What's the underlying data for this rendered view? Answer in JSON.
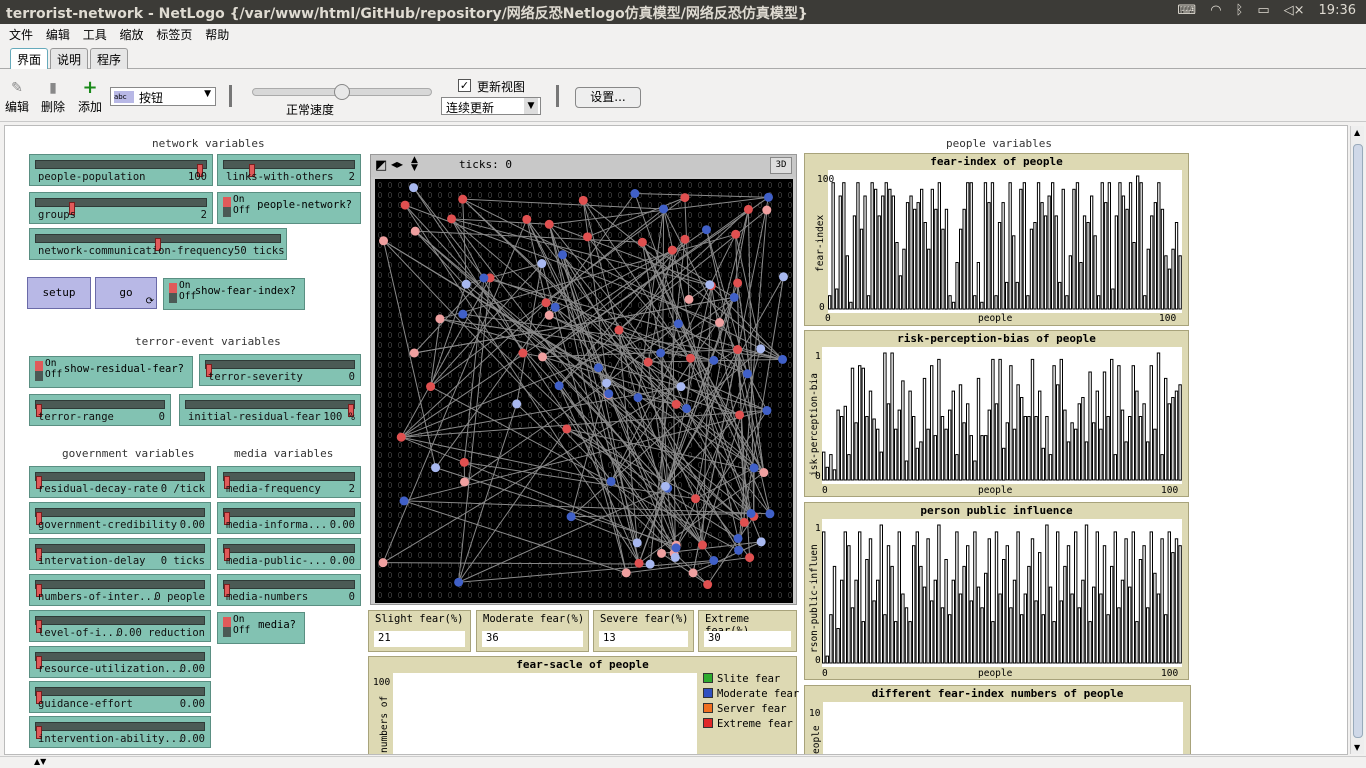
{
  "window": {
    "title": "terrorist-network - NetLogo {/var/www/html/GitHub/repository/网络反恐Netlogo仿真模型/网络反恐仿真模型}",
    "clock": "19:36",
    "tray_icons": [
      "keyboard-icon",
      "wifi-icon",
      "bluetooth-icon",
      "battery-icon",
      "volume-mute-icon"
    ]
  },
  "menu": [
    "文件",
    "编辑",
    "工具",
    "缩放",
    "标签页",
    "帮助"
  ],
  "tabs": [
    "界面",
    "说明",
    "程序"
  ],
  "toolbar": {
    "edit": "编辑",
    "delete": "删除",
    "add": "添加",
    "widget_select": "按钮",
    "speed_label": "正常速度",
    "speed": 0.5,
    "update_view": "更新视图",
    "update_view_checked": true,
    "update_mode": "连续更新",
    "settings": "设置..."
  },
  "sections": {
    "network": "network variables",
    "terror": "terror-event variables",
    "government": "government variables",
    "media": "media variables",
    "people": "people variables"
  },
  "sliders": [
    {
      "name": "people-population",
      "value": "100",
      "pos": 0.98
    },
    {
      "name": "links-with-others",
      "value": "2",
      "pos": 0.2
    },
    {
      "name": "groups",
      "value": "2",
      "pos": 0.2
    },
    {
      "name": "network-communication-frequency",
      "value": "50 ticks",
      "pos": 0.5
    },
    {
      "name": "terror-severity",
      "value": "0",
      "pos": 0
    },
    {
      "name": "terror-range",
      "value": "0",
      "pos": 0
    },
    {
      "name": "initial-residual-fear",
      "value": "100 %",
      "pos": 1
    },
    {
      "name": "residual-decay-rate",
      "value": "0 /tick",
      "pos": 0
    },
    {
      "name": "media-frequency",
      "value": "2",
      "pos": 0
    },
    {
      "name": "government-credibility",
      "value": "0.00",
      "pos": 0
    },
    {
      "name": "media-informa...",
      "value": "0.00",
      "pos": 0
    },
    {
      "name": "intervation-delay",
      "value": "0 ticks",
      "pos": 0
    },
    {
      "name": "media-public-...",
      "value": "0.00",
      "pos": 0
    },
    {
      "name": "numbers-of-inter...",
      "value": "0 people",
      "pos": 0
    },
    {
      "name": "media-numbers",
      "value": "0",
      "pos": 0
    },
    {
      "name": "level-of-i...",
      "value": "0.00 reduction",
      "pos": 0
    },
    {
      "name": "resource-utilization...",
      "value": "0.00",
      "pos": 0
    },
    {
      "name": "guidance-effort",
      "value": "0.00",
      "pos": 0
    },
    {
      "name": "intervention-ability...",
      "value": "0.00",
      "pos": 0
    }
  ],
  "switches": [
    {
      "name": "people-network?",
      "on": "On",
      "off": "Off"
    },
    {
      "name": "show-fear-index?",
      "on": "On",
      "off": "Off"
    },
    {
      "name": "show-residual-fear?",
      "on": "On",
      "off": "Off"
    },
    {
      "name": "media?",
      "on": "On",
      "off": "Off"
    }
  ],
  "buttons": {
    "setup": "setup",
    "go": "go"
  },
  "view": {
    "ticks_label": "ticks: 0",
    "three_d": "3D"
  },
  "monitors": [
    {
      "name": "Slight fear(%)",
      "value": "21"
    },
    {
      "name": "Moderate fear(%)",
      "value": "36"
    },
    {
      "name": "Severe fear(%)",
      "value": "13"
    },
    {
      "name": "Extreme fear(%)",
      "value": "30"
    }
  ],
  "plots": {
    "fear_index": {
      "title": "fear-index of people",
      "ylabel": "fear-index",
      "xlabel": "people",
      "xmin": "0",
      "xmax": "100",
      "ymin": "0",
      "ymax": "100"
    },
    "risk": {
      "title": "risk-perception-bias of people",
      "ylabel": "isk-perception-bia",
      "xlabel": "people",
      "xmin": "0",
      "xmax": "100",
      "ymin": "0",
      "ymax": "1"
    },
    "influence": {
      "title": "person public influence",
      "ylabel": "rson-public-influen",
      "xlabel": "people",
      "xmin": "0",
      "xmax": "100",
      "ymin": "0",
      "ymax": "1"
    },
    "fear_scale": {
      "title": "fear-sacle of people",
      "ylabel": "numbers of",
      "ymax": "100",
      "legend": [
        {
          "label": "Slite fear",
          "color": "#2eab2e"
        },
        {
          "label": "Moderate fear",
          "color": "#3050c0"
        },
        {
          "label": "Server fear",
          "color": "#f07020"
        },
        {
          "label": "Extreme fear",
          "color": "#e02828"
        }
      ]
    },
    "fear_numbers": {
      "title": "different fear-index numbers of people",
      "ylabel": "eople",
      "ymax": "10"
    }
  },
  "chart_data": [
    {
      "type": "bar",
      "title": "fear-index of people",
      "xlabel": "people",
      "ylabel": "fear-index",
      "ylim": [
        0,
        100
      ],
      "values": [
        10,
        95,
        15,
        85,
        95,
        40,
        5,
        70,
        95,
        60,
        85,
        10,
        95,
        90,
        70,
        85,
        95,
        90,
        85,
        50,
        25,
        45,
        80,
        85,
        75,
        80,
        90,
        65,
        45,
        90,
        75,
        95,
        60,
        75,
        10,
        5,
        35,
        60,
        75,
        95,
        95,
        10,
        35,
        5,
        95,
        80,
        95,
        10,
        65,
        80,
        20,
        95,
        55,
        20,
        90,
        95,
        10,
        60,
        65,
        95,
        80,
        70,
        85,
        95,
        70,
        20,
        90,
        10,
        40,
        90,
        95,
        35,
        70,
        65,
        85,
        55,
        10,
        95,
        80,
        95,
        15,
        70,
        95,
        85,
        75,
        95,
        50,
        100,
        95,
        10,
        45,
        70,
        80,
        95,
        75,
        40,
        30,
        45,
        65,
        40
      ]
    },
    {
      "type": "bar",
      "title": "risk-perception-bias of people",
      "xlabel": "people",
      "ylabel": "risk-perception-bias",
      "ylim": [
        0,
        1
      ],
      "values": [
        0.22,
        0.1,
        0.2,
        0.08,
        0.55,
        0.5,
        0.58,
        0.2,
        0.88,
        0.45,
        0.9,
        0.88,
        0.5,
        0.7,
        0.48,
        0.4,
        0.22,
        1.0,
        0.6,
        1.0,
        0.4,
        0.55,
        0.78,
        0.15,
        0.7,
        0.5,
        0.25,
        0.3,
        0.8,
        0.4,
        0.9,
        0.35,
        0.95,
        0.5,
        0.4,
        0.55,
        0.7,
        0.2,
        0.75,
        0.45,
        0.6,
        0.35,
        0.15,
        0.8,
        0.35,
        0.35,
        0.55,
        0.95,
        0.6,
        0.95,
        0.25,
        0.45,
        0.9,
        0.4,
        0.75,
        0.65,
        0.5,
        0.5,
        0.95,
        0.5,
        0.7,
        0.25,
        0.5,
        0.2,
        0.9,
        0.75,
        0.95,
        0.55,
        0.3,
        0.45,
        0.4,
        0.6,
        0.65,
        0.3,
        0.85,
        0.45,
        0.7,
        0.4,
        0.85,
        0.5,
        0.95,
        0.2,
        0.9,
        0.55,
        0.3,
        0.5,
        0.9,
        0.7,
        0.5,
        0.6,
        0.3,
        0.9,
        0.4,
        1.0,
        0.2,
        0.8,
        0.6,
        0.65,
        0.7,
        0.75
      ]
    },
    {
      "type": "bar",
      "title": "person public influence",
      "xlabel": "people",
      "ylabel": "person-public-influence",
      "ylim": [
        0,
        1
      ],
      "values": [
        0.95,
        0.05,
        0.35,
        0.7,
        0.25,
        0.6,
        0.95,
        0.85,
        0.4,
        0.6,
        0.95,
        0.3,
        0.75,
        0.9,
        0.45,
        0.6,
        1.0,
        0.35,
        0.85,
        0.7,
        0.3,
        0.95,
        0.5,
        0.4,
        0.3,
        0.85,
        0.95,
        0.7,
        0.55,
        0.9,
        0.45,
        0.6,
        1.0,
        0.4,
        0.75,
        0.35,
        0.6,
        0.95,
        0.5,
        0.7,
        0.85,
        0.45,
        0.95,
        0.55,
        0.4,
        0.65,
        0.9,
        0.3,
        0.95,
        0.5,
        0.75,
        0.85,
        0.4,
        0.6,
        0.95,
        0.35,
        0.5,
        0.7,
        0.9,
        0.45,
        0.8,
        0.35,
        1.0,
        0.55,
        0.3,
        0.95,
        0.45,
        0.7,
        0.85,
        0.5,
        0.95,
        0.4,
        0.6,
        1.0,
        0.3,
        0.55,
        0.95,
        0.5,
        0.85,
        0.35,
        0.7,
        0.95,
        0.4,
        0.6,
        0.9,
        0.55,
        0.95,
        0.3,
        0.75,
        0.85,
        0.4,
        0.95,
        0.65,
        0.5,
        0.9,
        0.35,
        0.95,
        0.8,
        0.9,
        0.85
      ]
    }
  ],
  "colors": {
    "slider": "#82c2b2",
    "button": "#b8b8e6",
    "monitor": "#ddd9b3",
    "view_bg": "#000000",
    "turtle_red": "#e05050",
    "turtle_blue": "#4060c8",
    "link": "#8a8a8a"
  }
}
